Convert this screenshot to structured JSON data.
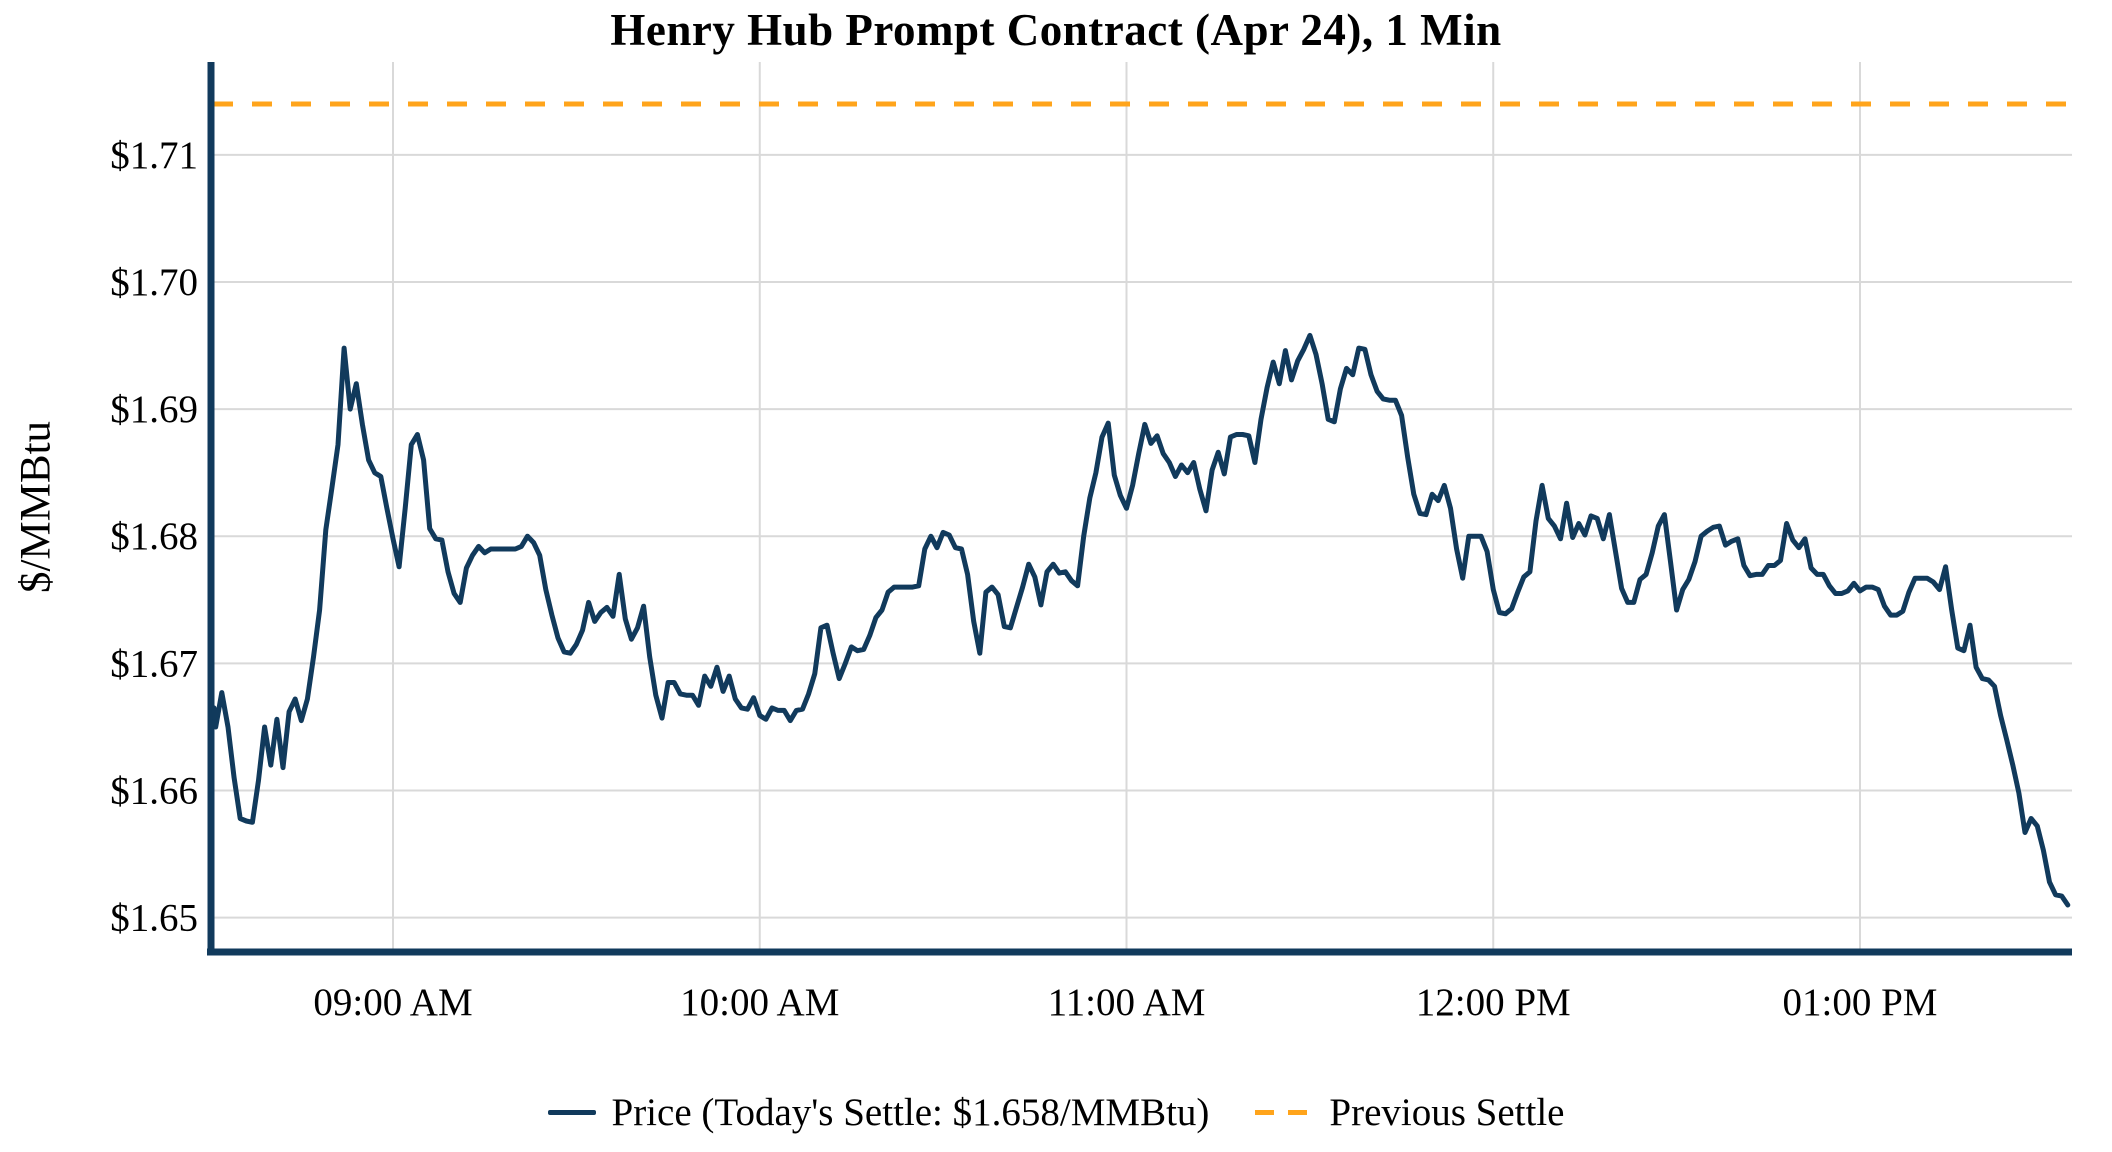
{
  "title": "Henry Hub Prompt Contract (Apr 24), 1 Min",
  "y_axis": {
    "label": "$/MMBtu"
  },
  "legend": {
    "price_label": "Price (Today's Settle: $1.658/MMBtu)",
    "previous_settle_label": "Previous Settle"
  },
  "colors": {
    "price": "#113A5C",
    "previous_settle": "#FFA41B",
    "grid": "#D9D9D9",
    "axis": "#113A5C",
    "text": "#000000"
  },
  "chart_data": {
    "type": "line",
    "title": "Henry Hub Prompt Contract (Apr 24), 1 Min",
    "xlabel": "",
    "ylabel": "$/MMBtu",
    "grid": true,
    "legend_position": "bottom",
    "ylim": [
      1.6473,
      1.7173
    ],
    "x_start_time": "08:30 AM",
    "x_end_time": "01:34 PM",
    "interval_minutes": 1,
    "x_ticks": [
      {
        "label": "09:00 AM",
        "minute": 30
      },
      {
        "label": "10:00 AM",
        "minute": 90
      },
      {
        "label": "11:00 AM",
        "minute": 150
      },
      {
        "label": "12:00 PM",
        "minute": 210
      },
      {
        "label": "01:00 PM",
        "minute": 270
      }
    ],
    "y_ticks": [
      {
        "label": "$1.71",
        "value": 1.71
      },
      {
        "label": "$1.70",
        "value": 1.7
      },
      {
        "label": "$1.69",
        "value": 1.69
      },
      {
        "label": "$1.68",
        "value": 1.68
      },
      {
        "label": "$1.67",
        "value": 1.67
      },
      {
        "label": "$1.66",
        "value": 1.66
      },
      {
        "label": "$1.65",
        "value": 1.65
      }
    ],
    "previous_settle": 1.714,
    "todays_settle": 1.658,
    "series": [
      {
        "name": "Price (Today's Settle: $1.658/MMBtu)",
        "unit": "$/MMBtu",
        "start_minute": 0,
        "values": [
          1.6665,
          1.665,
          1.6677,
          1.665,
          1.661,
          1.6578,
          1.6576,
          1.6575,
          1.6608,
          1.665,
          1.662,
          1.6656,
          1.6618,
          1.6662,
          1.6672,
          1.6655,
          1.6672,
          1.6705,
          1.6742,
          1.6805,
          1.6838,
          1.6872,
          1.6948,
          1.69,
          1.692,
          1.6888,
          1.686,
          1.685,
          1.6847,
          1.6822,
          1.6798,
          1.6776,
          1.6822,
          1.6872,
          1.688,
          1.686,
          1.6806,
          1.6798,
          1.6797,
          1.6772,
          1.6755,
          1.6748,
          1.6775,
          1.6785,
          1.6792,
          1.6787,
          1.679,
          1.679,
          1.679,
          1.679,
          1.679,
          1.6792,
          1.68,
          1.6795,
          1.6785,
          1.6758,
          1.6738,
          1.672,
          1.6709,
          1.6708,
          1.6715,
          1.6726,
          1.6748,
          1.6733,
          1.674,
          1.6744,
          1.6737,
          1.677,
          1.6735,
          1.6719,
          1.6728,
          1.6745,
          1.6705,
          1.6675,
          1.6657,
          1.6685,
          1.6685,
          1.6676,
          1.6675,
          1.6675,
          1.6667,
          1.669,
          1.6682,
          1.6697,
          1.6678,
          1.669,
          1.6672,
          1.6665,
          1.6664,
          1.6673,
          1.6659,
          1.6656,
          1.6665,
          1.6663,
          1.6663,
          1.6655,
          1.6663,
          1.6664,
          1.6676,
          1.6692,
          1.6728,
          1.673,
          1.6708,
          1.6688,
          1.67,
          1.6713,
          1.671,
          1.6711,
          1.6722,
          1.6736,
          1.6742,
          1.6756,
          1.676,
          1.676,
          1.676,
          1.676,
          1.6761,
          1.679,
          1.68,
          1.6791,
          1.6803,
          1.6801,
          1.6791,
          1.679,
          1.677,
          1.6733,
          1.6708,
          1.6756,
          1.676,
          1.6754,
          1.6729,
          1.6728,
          1.6744,
          1.676,
          1.6778,
          1.6768,
          1.6746,
          1.6772,
          1.6778,
          1.6771,
          1.6772,
          1.6765,
          1.6761,
          1.68,
          1.683,
          1.685,
          1.6878,
          1.6889,
          1.6848,
          1.6832,
          1.6822,
          1.684,
          1.6865,
          1.6888,
          1.6873,
          1.6879,
          1.6865,
          1.6858,
          1.6847,
          1.6856,
          1.685,
          1.6858,
          1.6837,
          1.682,
          1.6852,
          1.6866,
          1.6849,
          1.6878,
          1.688,
          1.688,
          1.6879,
          1.6858,
          1.6892,
          1.6917,
          1.6937,
          1.692,
          1.6946,
          1.6923,
          1.6938,
          1.6947,
          1.6958,
          1.6943,
          1.692,
          1.6892,
          1.689,
          1.6916,
          1.6932,
          1.6927,
          1.6948,
          1.6947,
          1.6927,
          1.6914,
          1.6908,
          1.6907,
          1.6907,
          1.6895,
          1.6862,
          1.6833,
          1.6818,
          1.6817,
          1.6833,
          1.6828,
          1.684,
          1.6822,
          1.679,
          1.6767,
          1.68,
          1.68,
          1.68,
          1.6788,
          1.6758,
          1.674,
          1.6739,
          1.6743,
          1.6756,
          1.6768,
          1.6772,
          1.6812,
          1.684,
          1.6814,
          1.6808,
          1.6798,
          1.6826,
          1.6799,
          1.681,
          1.6801,
          1.6816,
          1.6814,
          1.6798,
          1.6817,
          1.6788,
          1.6759,
          1.6748,
          1.6748,
          1.6766,
          1.677,
          1.6787,
          1.6808,
          1.6817,
          1.678,
          1.6742,
          1.6758,
          1.6766,
          1.678,
          1.68,
          1.6804,
          1.6807,
          1.6808,
          1.6793,
          1.6796,
          1.6798,
          1.6777,
          1.6769,
          1.677,
          1.677,
          1.6777,
          1.6777,
          1.6781,
          1.681,
          1.6797,
          1.6791,
          1.6798,
          1.6775,
          1.677,
          1.677,
          1.6761,
          1.6755,
          1.6755,
          1.6757,
          1.6763,
          1.6757,
          1.676,
          1.676,
          1.6758,
          1.6745,
          1.6738,
          1.6738,
          1.6741,
          1.6756,
          1.6767,
          1.6767,
          1.6767,
          1.6764,
          1.6758,
          1.6776,
          1.6742,
          1.6712,
          1.671,
          1.673,
          1.6697,
          1.6688,
          1.6687,
          1.6682,
          1.6659,
          1.664,
          1.662,
          1.6598,
          1.6567,
          1.6578,
          1.6572,
          1.6553,
          1.6528,
          1.6518,
          1.6517,
          1.651
        ]
      },
      {
        "name": "Previous Settle",
        "unit": "$/MMBtu",
        "style": "dashed",
        "constant_value": 1.714
      }
    ]
  }
}
